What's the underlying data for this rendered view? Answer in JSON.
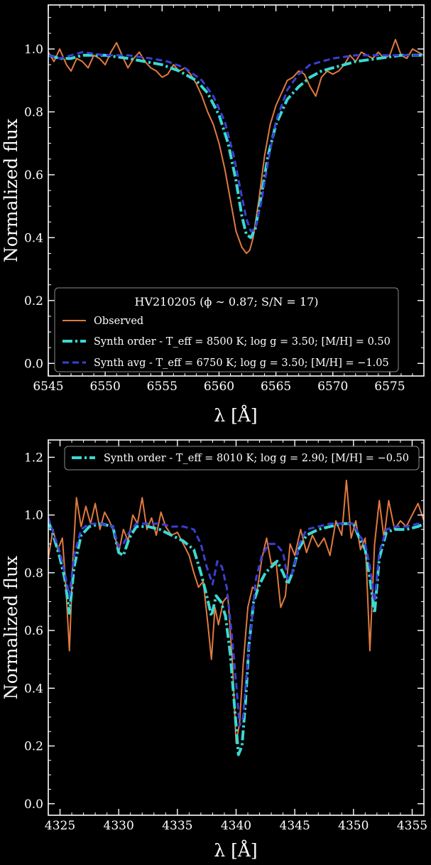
{
  "chart_data": [
    {
      "type": "line",
      "xlabel": "λ [Å]",
      "ylabel": "Normalized flux",
      "xlim": [
        6545,
        6578
      ],
      "ylim": [
        -0.04,
        1.14
      ],
      "xticks": [
        6545,
        6550,
        6555,
        6560,
        6565,
        6570,
        6575
      ],
      "yticks": [
        0.0,
        0.2,
        0.4,
        0.6,
        0.8,
        1.0
      ],
      "xtick_labels": [
        "6545",
        "6550",
        "6555",
        "6560",
        "6565",
        "6570",
        "6575"
      ],
      "ytick_labels": [
        "0.0",
        "0.2",
        "0.4",
        "0.6",
        "0.8",
        "1.0"
      ],
      "grid": false,
      "legend": {
        "placement": "lower-center",
        "title": "HV210205 (ϕ ∼ 0.87; S/N = 17)",
        "entries": [
          {
            "label": "Observed",
            "color": "#e07a3f",
            "style": "solid"
          },
          {
            "label": "Synth order - T_eff = 8500 K; log g = 3.50; [M/H] = 0.50",
            "color": "#3ad9d2",
            "style": "dashdot"
          },
          {
            "label": "Synth avg - T_eff = 6750 K; log g = 3.50; [M/H] = −1.05",
            "color": "#3a3fd6",
            "style": "dashed"
          }
        ]
      },
      "series": [
        {
          "name": "Observed",
          "color": "#e07a3f",
          "style": "solid",
          "x": [
            6545.0,
            6545.5,
            6546.0,
            6546.6,
            6547.0,
            6547.5,
            6548.0,
            6548.5,
            6549.0,
            6549.5,
            6550.0,
            6550.5,
            6551.0,
            6551.6,
            6552.0,
            6552.5,
            6553.0,
            6553.5,
            6554.0,
            6554.5,
            6555.0,
            6555.5,
            6556.0,
            6556.5,
            6557.0,
            6557.5,
            6558.0,
            6558.5,
            6559.0,
            6559.5,
            6560.0,
            6560.5,
            6561.0,
            6561.5,
            6562.0,
            6562.4,
            6562.7,
            6563.0,
            6563.5,
            6564.0,
            6564.5,
            6565.0,
            6565.5,
            6566.0,
            6566.5,
            6567.0,
            6567.5,
            6568.0,
            6568.5,
            6569.0,
            6569.5,
            6570.0,
            6570.5,
            6571.0,
            6571.5,
            6572.0,
            6572.5,
            6573.0,
            6573.5,
            6574.0,
            6574.5,
            6575.0,
            6575.5,
            6576.0,
            6576.5,
            6577.0,
            6577.5,
            6578.0
          ],
          "y": [
            0.99,
            0.96,
            1.0,
            0.95,
            0.93,
            0.97,
            0.96,
            0.94,
            0.98,
            0.97,
            0.95,
            0.99,
            1.02,
            0.97,
            0.94,
            0.97,
            0.99,
            0.96,
            0.94,
            0.93,
            0.91,
            0.92,
            0.95,
            0.93,
            0.94,
            0.92,
            0.89,
            0.85,
            0.8,
            0.76,
            0.7,
            0.62,
            0.52,
            0.42,
            0.37,
            0.35,
            0.36,
            0.4,
            0.52,
            0.66,
            0.76,
            0.82,
            0.86,
            0.9,
            0.91,
            0.93,
            0.92,
            0.88,
            0.85,
            0.91,
            0.93,
            0.92,
            0.93,
            0.95,
            0.98,
            0.96,
            0.99,
            0.98,
            0.97,
            0.99,
            0.97,
            0.98,
            1.03,
            0.98,
            0.97,
            1.0,
            0.99,
            0.98
          ]
        },
        {
          "name": "Synth order",
          "color": "#3ad9d2",
          "style": "dashdot",
          "x": [
            6545.0,
            6546.0,
            6547.0,
            6548.0,
            6550.0,
            6552.0,
            6553.5,
            6555.0,
            6556.5,
            6558.0,
            6559.0,
            6560.0,
            6560.8,
            6561.5,
            6562.0,
            6562.4,
            6562.8,
            6563.2,
            6563.7,
            6564.3,
            6565.0,
            6566.0,
            6567.0,
            6568.0,
            6569.0,
            6570.0,
            6572.0,
            6574.0,
            6576.0,
            6578.0
          ],
          "y": [
            0.98,
            0.97,
            0.97,
            0.98,
            0.98,
            0.97,
            0.96,
            0.95,
            0.93,
            0.9,
            0.86,
            0.79,
            0.7,
            0.58,
            0.47,
            0.41,
            0.4,
            0.43,
            0.53,
            0.66,
            0.76,
            0.84,
            0.88,
            0.91,
            0.93,
            0.94,
            0.96,
            0.97,
            0.98,
            0.98
          ]
        },
        {
          "name": "Synth avg",
          "color": "#3a3fd6",
          "style": "dashed",
          "x": [
            6545.0,
            6546.0,
            6547.0,
            6548.0,
            6550.0,
            6552.0,
            6554.0,
            6555.5,
            6557.0,
            6558.5,
            6559.5,
            6560.5,
            6561.3,
            6561.9,
            6562.4,
            6562.8,
            6563.2,
            6563.7,
            6564.3,
            6565.0,
            6566.0,
            6567.0,
            6568.0,
            6570.0,
            6572.0,
            6574.0,
            6576.0,
            6578.0
          ],
          "y": [
            0.98,
            0.97,
            0.98,
            0.99,
            0.98,
            0.98,
            0.97,
            0.96,
            0.94,
            0.9,
            0.85,
            0.77,
            0.66,
            0.55,
            0.46,
            0.42,
            0.43,
            0.51,
            0.64,
            0.77,
            0.87,
            0.92,
            0.95,
            0.97,
            0.98,
            0.98,
            0.98,
            0.98
          ]
        }
      ]
    },
    {
      "type": "line",
      "xlabel": "λ [Å]",
      "ylabel": "Normalized flux",
      "xlim": [
        4324,
        4356
      ],
      "ylim": [
        -0.04,
        1.26
      ],
      "xticks": [
        4325,
        4330,
        4335,
        4340,
        4345,
        4350,
        4355
      ],
      "yticks": [
        0.0,
        0.2,
        0.4,
        0.6,
        0.8,
        1.0,
        1.2
      ],
      "xtick_labels": [
        "4325",
        "4330",
        "4335",
        "4340",
        "4345",
        "4350",
        "4355"
      ],
      "ytick_labels": [
        "0.0",
        "0.2",
        "0.4",
        "0.6",
        "0.8",
        "1.0",
        "1.2"
      ],
      "grid": false,
      "legend": {
        "placement": "top-center",
        "entries": [
          {
            "label": "Synth order - T_eff = 8010 K; log g = 2.90; [M/H] = −0.50",
            "color": "#3ad9d2",
            "style": "dashdot"
          }
        ]
      },
      "series": [
        {
          "name": "Observed",
          "color": "#e07a3f",
          "style": "solid",
          "x": [
            4324.0,
            4324.4,
            4324.8,
            4325.2,
            4325.5,
            4325.8,
            4326.1,
            4326.4,
            4326.8,
            4327.2,
            4327.6,
            4328.0,
            4328.4,
            4328.8,
            4329.2,
            4329.6,
            4330.0,
            4330.4,
            4330.8,
            4331.2,
            4331.6,
            4332.0,
            4332.4,
            4332.8,
            4333.2,
            4333.6,
            4334.0,
            4334.5,
            4335.0,
            4335.5,
            4336.0,
            4336.4,
            4336.8,
            4337.2,
            4337.6,
            4337.9,
            4338.2,
            4338.5,
            4338.9,
            4339.3,
            4339.7,
            4340.0,
            4340.3,
            4340.6,
            4341.0,
            4341.4,
            4341.8,
            4342.2,
            4342.6,
            4343.0,
            4343.4,
            4343.8,
            4344.2,
            4344.6,
            4345.0,
            4345.5,
            4346.0,
            4346.5,
            4347.0,
            4347.5,
            4348.0,
            4348.5,
            4349.0,
            4349.4,
            4349.8,
            4350.2,
            4350.6,
            4351.0,
            4351.4,
            4351.8,
            4352.2,
            4352.6,
            4353.0,
            4353.5,
            4354.0,
            4354.5,
            4355.0,
            4355.5,
            4356.0
          ],
          "y": [
            0.85,
            0.95,
            0.88,
            0.92,
            0.75,
            0.53,
            0.85,
            1.06,
            0.96,
            1.03,
            0.97,
            1.04,
            0.95,
            1.01,
            0.98,
            0.94,
            0.87,
            0.95,
            0.91,
            1.0,
            0.97,
            1.06,
            0.95,
            0.99,
            0.93,
            1.01,
            0.96,
            0.93,
            0.94,
            0.9,
            0.86,
            0.8,
            0.75,
            0.77,
            0.62,
            0.5,
            0.68,
            0.62,
            0.7,
            0.72,
            0.48,
            0.21,
            0.28,
            0.48,
            0.68,
            0.75,
            0.74,
            0.85,
            0.92,
            0.83,
            0.84,
            0.68,
            0.72,
            0.9,
            0.86,
            0.95,
            0.87,
            0.93,
            0.89,
            0.92,
            0.86,
            0.98,
            0.93,
            1.12,
            0.92,
            0.98,
            0.88,
            0.92,
            0.53,
            0.9,
            1.05,
            0.92,
            1.05,
            0.95,
            0.98,
            0.96,
            1.0,
            1.04,
            0.98
          ]
        },
        {
          "name": "Synth order",
          "color": "#3ad9d2",
          "style": "dashdot",
          "x": [
            4324.0,
            4324.5,
            4325.0,
            4325.4,
            4325.8,
            4326.2,
            4326.8,
            4327.5,
            4328.5,
            4329.5,
            4330.0,
            4330.4,
            4330.9,
            4331.5,
            4332.5,
            4333.5,
            4334.5,
            4335.5,
            4336.4,
            4337.0,
            4337.5,
            4337.9,
            4338.3,
            4338.7,
            4339.1,
            4339.5,
            4339.9,
            4340.2,
            4340.5,
            4340.8,
            4341.1,
            4341.5,
            4342.0,
            4342.5,
            4343.0,
            4343.5,
            4344.0,
            4344.4,
            4344.8,
            4345.3,
            4346.0,
            4347.0,
            4348.0,
            4349.0,
            4350.0,
            4350.5,
            4351.0,
            4351.4,
            4351.8,
            4352.2,
            4352.8,
            4353.5,
            4354.5,
            4355.5,
            4356.0
          ],
          "y": [
            0.98,
            0.92,
            0.85,
            0.78,
            0.66,
            0.82,
            0.93,
            0.96,
            0.97,
            0.96,
            0.87,
            0.86,
            0.92,
            0.96,
            0.96,
            0.95,
            0.93,
            0.91,
            0.88,
            0.8,
            0.72,
            0.65,
            0.72,
            0.7,
            0.65,
            0.52,
            0.32,
            0.17,
            0.2,
            0.35,
            0.55,
            0.7,
            0.76,
            0.8,
            0.82,
            0.84,
            0.8,
            0.76,
            0.8,
            0.88,
            0.93,
            0.95,
            0.96,
            0.97,
            0.97,
            0.92,
            0.88,
            0.78,
            0.66,
            0.85,
            0.94,
            0.95,
            0.95,
            0.96,
            0.97
          ]
        },
        {
          "name": "Synth avg",
          "color": "#3a3fd6",
          "style": "dashed",
          "x": [
            4324.0,
            4324.5,
            4325.0,
            4325.4,
            4325.8,
            4326.2,
            4326.8,
            4327.5,
            4328.5,
            4329.5,
            4330.0,
            4330.4,
            4330.9,
            4331.5,
            4332.5,
            4333.5,
            4334.5,
            4335.5,
            4336.4,
            4337.0,
            4337.5,
            4338.0,
            4338.4,
            4338.8,
            4339.2,
            4339.6,
            4340.0,
            4340.3,
            4340.6,
            4340.9,
            4341.3,
            4341.7,
            4342.2,
            4342.8,
            4343.4,
            4344.0,
            4344.4,
            4344.8,
            4345.4,
            4346.0,
            4347.0,
            4348.0,
            4349.0,
            4350.0,
            4350.5,
            4351.0,
            4351.4,
            4351.8,
            4352.2,
            4352.8,
            4353.5,
            4354.5,
            4355.5,
            4356.0
          ],
          "y": [
            0.99,
            0.93,
            0.87,
            0.8,
            0.72,
            0.86,
            0.95,
            0.97,
            0.97,
            0.96,
            0.89,
            0.9,
            0.94,
            0.97,
            0.97,
            0.97,
            0.96,
            0.96,
            0.95,
            0.9,
            0.82,
            0.76,
            0.84,
            0.82,
            0.75,
            0.6,
            0.42,
            0.27,
            0.3,
            0.45,
            0.62,
            0.78,
            0.86,
            0.9,
            0.9,
            0.87,
            0.78,
            0.8,
            0.9,
            0.95,
            0.96,
            0.97,
            0.97,
            0.97,
            0.93,
            0.9,
            0.82,
            0.7,
            0.87,
            0.95,
            0.96,
            0.96,
            0.97,
            0.97
          ]
        }
      ]
    }
  ]
}
